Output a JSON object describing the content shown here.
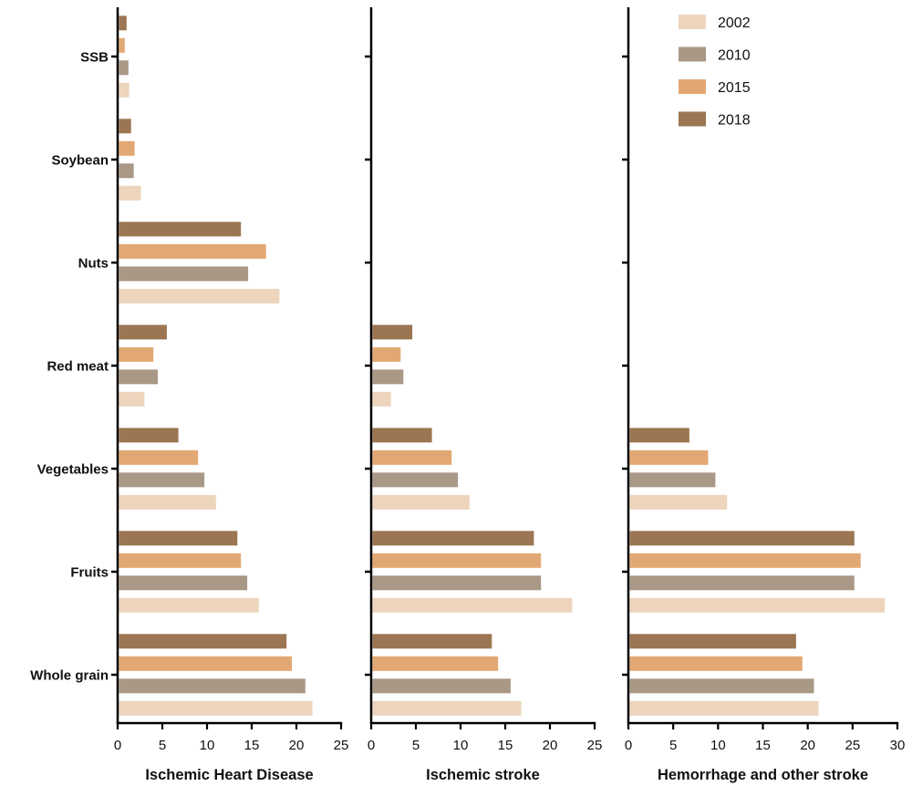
{
  "chart_data": {
    "type": "bar",
    "orientation": "horizontal",
    "categories": [
      "SSB",
      "Soybean",
      "Nuts",
      "Red meat",
      "Vegetables",
      "Fruits",
      "Whole grain"
    ],
    "series_names": [
      "2002",
      "2010",
      "2015",
      "2018"
    ],
    "colors": {
      "2002": "#ecd5bc",
      "2010": "#aa9887",
      "2015": "#e2a873",
      "2018": "#9c7653"
    },
    "legend_position": "top-right",
    "panels": [
      {
        "xlabel": "Ischemic Heart Disease",
        "xlim": [
          0,
          25
        ],
        "xticks": [
          "0",
          "5",
          "10",
          "15",
          "20",
          "25"
        ],
        "series": [
          {
            "name": "2002",
            "values": [
              1.3,
              2.6,
              18.1,
              3.0,
              11.0,
              15.8,
              21.8
            ]
          },
          {
            "name": "2010",
            "values": [
              1.2,
              1.8,
              14.6,
              4.5,
              9.7,
              14.5,
              21.0
            ]
          },
          {
            "name": "2015",
            "values": [
              0.8,
              1.9,
              16.6,
              4.0,
              9.0,
              13.8,
              19.5
            ]
          },
          {
            "name": "2018",
            "values": [
              1.0,
              1.5,
              13.8,
              5.5,
              6.8,
              13.4,
              18.9
            ]
          }
        ]
      },
      {
        "xlabel": "Ischemic stroke",
        "xlim": [
          0,
          25
        ],
        "xticks": [
          "0",
          "5",
          "10",
          "15",
          "20",
          "25"
        ],
        "series": [
          {
            "name": "2002",
            "values": [
              null,
              null,
              null,
              2.2,
              11.0,
              22.5,
              16.8
            ]
          },
          {
            "name": "2010",
            "values": [
              null,
              null,
              null,
              3.6,
              9.7,
              19.0,
              15.6
            ]
          },
          {
            "name": "2015",
            "values": [
              null,
              null,
              null,
              3.3,
              9.0,
              19.0,
              14.2
            ]
          },
          {
            "name": "2018",
            "values": [
              null,
              null,
              null,
              4.6,
              6.8,
              18.2,
              13.5
            ]
          }
        ]
      },
      {
        "xlabel": "Hemorrhage and other stroke",
        "xlim": [
          0,
          30
        ],
        "xticks": [
          "0",
          "5",
          "10",
          "15",
          "20",
          "25",
          "30"
        ],
        "series": [
          {
            "name": "2002",
            "values": [
              null,
              null,
              null,
              null,
              11.0,
              28.6,
              21.2
            ]
          },
          {
            "name": "2010",
            "values": [
              null,
              null,
              null,
              null,
              9.7,
              25.2,
              20.7
            ]
          },
          {
            "name": "2015",
            "values": [
              null,
              null,
              null,
              null,
              8.9,
              25.9,
              19.4
            ]
          },
          {
            "name": "2018",
            "values": [
              null,
              null,
              null,
              null,
              6.8,
              25.2,
              18.7
            ]
          }
        ]
      }
    ]
  }
}
